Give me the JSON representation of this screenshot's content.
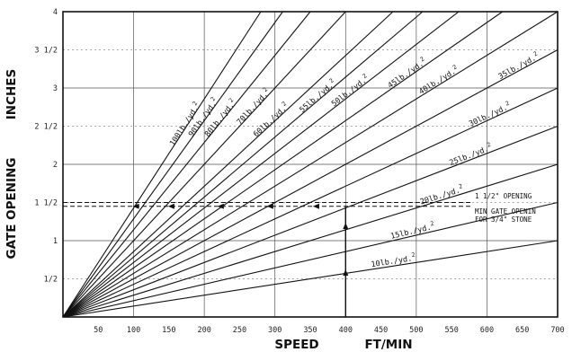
{
  "chart_data": {
    "type": "line",
    "title": "",
    "xlabel": "SPEED",
    "xunit": "FT/MIN",
    "ylabel_main": "GATE OPENING",
    "ylabel_unit": "INCHES",
    "xlim": [
      0,
      700
    ],
    "ylim": [
      0,
      4
    ],
    "grid": true,
    "x_ticks": [
      {
        "value": 50,
        "label": "50"
      },
      {
        "value": 100,
        "label": "100"
      },
      {
        "value": 150,
        "label": "150"
      },
      {
        "value": 200,
        "label": "200"
      },
      {
        "value": 250,
        "label": "250"
      },
      {
        "value": 300,
        "label": "300"
      },
      {
        "value": 350,
        "label": "350"
      },
      {
        "value": 400,
        "label": "400"
      },
      {
        "value": 450,
        "label": "450"
      },
      {
        "value": 500,
        "label": "500"
      },
      {
        "value": 550,
        "label": "550"
      },
      {
        "value": 600,
        "label": "600"
      },
      {
        "value": 650,
        "label": "650"
      },
      {
        "value": 700,
        "label": "700"
      }
    ],
    "y_ticks": [
      {
        "value": 0.5,
        "label": "1/2"
      },
      {
        "value": 1,
        "label": "1"
      },
      {
        "value": 1.5,
        "label": "1 1/2"
      },
      {
        "value": 2,
        "label": "2"
      },
      {
        "value": 2.5,
        "label": "2 1/2"
      },
      {
        "value": 3,
        "label": "3"
      },
      {
        "value": 3.5,
        "label": "3 1/2"
      },
      {
        "value": 4,
        "label": "4"
      }
    ],
    "series": [
      {
        "label": "10lb./yd.",
        "sup": "2",
        "x": [
          0,
          700
        ],
        "y": [
          0,
          1.0
        ]
      },
      {
        "label": "15lb./yd.",
        "sup": "2",
        "x": [
          0,
          700
        ],
        "y": [
          0,
          1.5
        ]
      },
      {
        "label": "20lb./yd.",
        "sup": "2",
        "x": [
          0,
          700
        ],
        "y": [
          0,
          2.0
        ]
      },
      {
        "label": "25lb./yd.",
        "sup": "2",
        "x": [
          0,
          700
        ],
        "y": [
          0,
          2.5
        ]
      },
      {
        "label": "30lb./yd.",
        "sup": "2",
        "x": [
          0,
          700
        ],
        "y": [
          0,
          3.0
        ]
      },
      {
        "label": "35lb./yd.",
        "sup": "2",
        "x": [
          0,
          700
        ],
        "y": [
          0,
          3.5
        ]
      },
      {
        "label": "40lb./yd.",
        "sup": "2",
        "x": [
          0,
          700
        ],
        "y": [
          0,
          4.0
        ]
      },
      {
        "label": "45lb./yd.",
        "sup": "2",
        "x": [
          0,
          622
        ],
        "y": [
          0,
          4.0
        ]
      },
      {
        "label": "50lb./yd.",
        "sup": "2",
        "x": [
          0,
          560
        ],
        "y": [
          0,
          4.0
        ]
      },
      {
        "label": "55lb./yd.",
        "sup": "2",
        "x": [
          0,
          509
        ],
        "y": [
          0,
          4.0
        ]
      },
      {
        "label": "60lb./yd.",
        "sup": "2",
        "x": [
          0,
          467
        ],
        "y": [
          0,
          4.0
        ]
      },
      {
        "label": "70lb./yd.",
        "sup": "2",
        "x": [
          0,
          400
        ],
        "y": [
          0,
          4.0
        ]
      },
      {
        "label": "80lb./yd.",
        "sup": "2",
        "x": [
          0,
          350
        ],
        "y": [
          0,
          4.0
        ]
      },
      {
        "label": "90lb./yd.",
        "sup": "2",
        "x": [
          0,
          311
        ],
        "y": [
          0,
          4.0
        ]
      },
      {
        "label": "100lb./yd.",
        "sup": "2",
        "x": [
          0,
          280
        ],
        "y": [
          0,
          4.0
        ]
      }
    ],
    "reference_line": {
      "y": 1.5,
      "label": "1 1/2\" OPENING"
    },
    "minimum_line": {
      "y": 1.45
    },
    "annotation": {
      "lines": [
        "MIN GATE OPENIN",
        "FOR 3/4\" STONE"
      ]
    },
    "example_path": {
      "x": 400,
      "y": 1.45
    }
  }
}
